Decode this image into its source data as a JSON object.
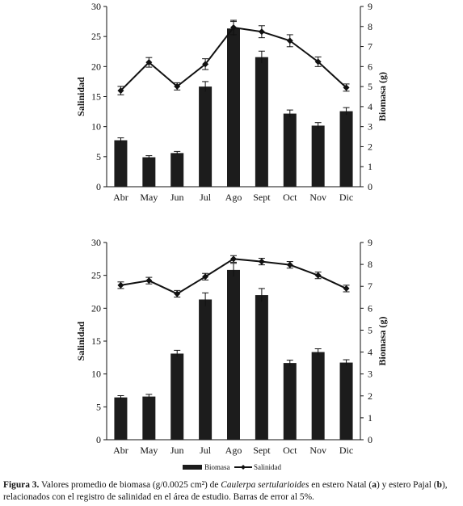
{
  "chart_data": [
    {
      "type": "bar+line",
      "panel": "a",
      "categories": [
        "Abr",
        "May",
        "Jun",
        "Jul",
        "Ago",
        "Sept",
        "Oct",
        "Nov",
        "Dic"
      ],
      "ylabel": "Salinidad",
      "y2label": "Biomasa (g)",
      "ylim": [
        0,
        30
      ],
      "y2lim": [
        0,
        9
      ],
      "yticks": [
        0,
        5,
        10,
        15,
        20,
        25,
        30
      ],
      "y2ticks": [
        0,
        1,
        2,
        3,
        4,
        5,
        6,
        7,
        8,
        9
      ],
      "series": [
        {
          "name": "Biomasa",
          "kind": "bar",
          "axis": "right",
          "values": [
            2.32,
            1.47,
            1.68,
            5.0,
            7.9,
            6.47,
            3.65,
            3.05,
            3.77
          ],
          "errors": [
            0.12,
            0.08,
            0.08,
            0.25,
            0.35,
            0.3,
            0.18,
            0.15,
            0.18
          ]
        },
        {
          "name": "Salinidad",
          "kind": "line",
          "axis": "left",
          "values": [
            16.0,
            20.7,
            16.7,
            20.4,
            26.5,
            25.8,
            24.3,
            20.8,
            16.5
          ],
          "errors": [
            0.7,
            0.8,
            0.6,
            0.9,
            1.2,
            1.0,
            1.0,
            0.8,
            0.6
          ]
        }
      ]
    },
    {
      "type": "bar+line",
      "panel": "b",
      "categories": [
        "Abr",
        "May",
        "Jun",
        "Jul",
        "Ago",
        "Sept",
        "Oct",
        "Nov",
        "Dic"
      ],
      "ylabel": "Salinidad",
      "y2label": "Biomasa (g)",
      "ylim": [
        0,
        30
      ],
      "y2lim": [
        0,
        9
      ],
      "yticks": [
        0,
        5,
        10,
        15,
        20,
        25,
        30
      ],
      "y2ticks": [
        0,
        1,
        2,
        3,
        4,
        5,
        6,
        7,
        8,
        9
      ],
      "series": [
        {
          "name": "Biomasa",
          "kind": "bar",
          "axis": "right",
          "values": [
            1.93,
            1.97,
            3.93,
            6.4,
            7.75,
            6.6,
            3.5,
            4.0,
            3.52
          ],
          "errors": [
            0.08,
            0.1,
            0.15,
            0.3,
            0.3,
            0.3,
            0.13,
            0.15,
            0.13
          ]
        },
        {
          "name": "Salinidad",
          "kind": "line",
          "axis": "left",
          "values": [
            23.5,
            24.2,
            22.2,
            24.8,
            27.5,
            27.1,
            26.6,
            25.0,
            23.0
          ],
          "errors": [
            0.5,
            0.5,
            0.5,
            0.5,
            0.5,
            0.5,
            0.5,
            0.5,
            0.5
          ]
        }
      ],
      "legend": [
        "Biomasa",
        "Salinidad"
      ]
    }
  ],
  "colors": {
    "bar": "#1c1c1c",
    "line": "#111111",
    "axis": "#111111"
  },
  "caption": {
    "label": "Figura 3.",
    "text_1": " Valores promedio de biomasa (g/0.0025 cm²) de ",
    "species": "Caulerpa sertularioides",
    "text_2": " en estero Natal (",
    "a": "a",
    "text_3": ") y estero Pajal (",
    "b": "b",
    "text_4": "), relacionados con el registro de salinidad en el área de estudio. Barras de error al 5%."
  }
}
